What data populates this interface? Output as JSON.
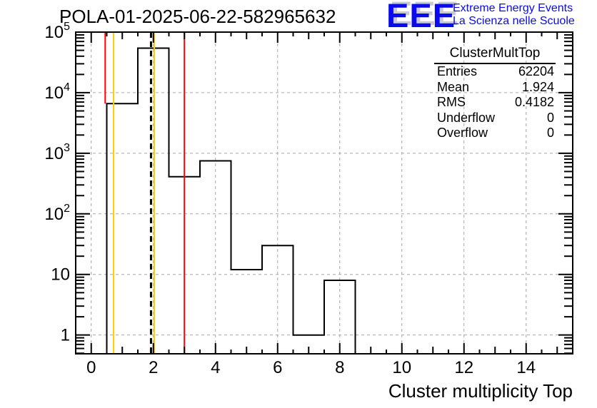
{
  "title": "POLA-01-2025-06-22-582965632",
  "logo": {
    "text": "EEE",
    "line1": "Extreme Energy Events",
    "line2": "La Scienza nelle Scuole",
    "color": "#0a0af0",
    "shadow_color": "#c9c9d6"
  },
  "stats": {
    "title": "ClusterMultTop",
    "rows": [
      [
        "Entries",
        "62204"
      ],
      [
        "Mean",
        "1.924"
      ],
      [
        "RMS",
        "0.4182"
      ],
      [
        "Underflow",
        "0"
      ],
      [
        "Overflow",
        "0"
      ]
    ]
  },
  "chart_data": {
    "type": "bar",
    "subtype": "step-histogram-log-y",
    "title": "POLA-01-2025-06-22-582965632",
    "xlabel": "Cluster multiplicity Top",
    "ylabel": "",
    "x_range": [
      -0.5,
      15.5
    ],
    "y_range": [
      0.49,
      100000
    ],
    "y_scale": "log",
    "grid": true,
    "grid_color": "#a6a6a6",
    "line_color": "#000000",
    "bin_centers": [
      0,
      1,
      2,
      3,
      4,
      5,
      6,
      7,
      8,
      9,
      10,
      11,
      12,
      13,
      14,
      15
    ],
    "values": [
      0,
      6600,
      54300,
      410,
      750,
      12,
      30,
      1,
      8,
      0,
      0,
      0,
      0,
      0,
      0,
      0
    ],
    "x_major_ticks": [
      0,
      2,
      4,
      6,
      8,
      10,
      12,
      14
    ],
    "y_tick_values": [
      1,
      10,
      100,
      1000,
      10000,
      100000
    ],
    "y_tick_labels": [
      {
        "text": "1"
      },
      {
        "text": "10"
      },
      {
        "text": "10",
        "exp": "2"
      },
      {
        "text": "10",
        "exp": "3"
      },
      {
        "text": "10",
        "exp": "4"
      },
      {
        "text": "10",
        "exp": "5"
      }
    ],
    "marker_lines": [
      {
        "x": 0.45,
        "color": "#ff0000",
        "style": "solid",
        "y_stop": 6600
      },
      {
        "x": 3.0,
        "color": "#ff0000",
        "style": "solid"
      },
      {
        "x": 0.72,
        "color": "#ffcc00",
        "style": "solid"
      },
      {
        "x": 2.03,
        "color": "#ffcc00",
        "style": "solid"
      },
      {
        "x": 1.924,
        "color": "#000000",
        "style": "dashed"
      }
    ]
  }
}
